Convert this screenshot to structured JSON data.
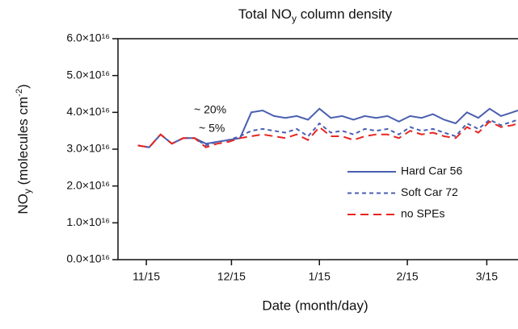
{
  "chart_data": {
    "type": "line",
    "title": [
      "Total NO",
      "y",
      " column density"
    ],
    "x_label": "Date (month/day)",
    "y_label": [
      "NO",
      "y",
      " (molecules cm",
      "-2",
      ")"
    ],
    "x": [
      "11/12",
      "11/16",
      "11/20",
      "11/24",
      "11/28",
      "12/2",
      "12/6",
      "12/10",
      "12/14",
      "12/18",
      "12/22",
      "12/26",
      "12/30",
      "1/3",
      "1/7",
      "1/11",
      "1/15",
      "1/19",
      "1/23",
      "1/27",
      "1/31",
      "2/4",
      "2/8",
      "2/12",
      "2/16",
      "2/20",
      "2/24",
      "2/28",
      "3/4",
      "3/8",
      "3/12",
      "3/16",
      "3/20",
      "3/24",
      "3/26"
    ],
    "xlim": [
      "11/5",
      "3/26"
    ],
    "xticks": [
      "11/15",
      "12/15",
      "1/15",
      "2/15",
      "3/15"
    ],
    "ylim": [
      0,
      6e+16
    ],
    "yticks": [
      {
        "value": 0,
        "label": "0.0×10¹⁶"
      },
      {
        "value": 1e+16,
        "label": "1.0×10¹⁶"
      },
      {
        "value": 2e+16,
        "label": "2.0×10¹⁶"
      },
      {
        "value": 3e+16,
        "label": "3.0×10¹⁶"
      },
      {
        "value": 4e+16,
        "label": "4.0×10¹⁶"
      },
      {
        "value": 5e+16,
        "label": "5.0×10¹⁶"
      },
      {
        "value": 6e+16,
        "label": "6.0×10¹⁶"
      }
    ],
    "series": [
      {
        "name": "Hard Car 56",
        "color": "#4a5fb0",
        "dash": "solid",
        "values": [
          3.1e+16,
          3.05e+16,
          3.4e+16,
          3.15e+16,
          3.3e+16,
          3.3e+16,
          3.15e+16,
          3.2e+16,
          3.25e+16,
          3.3e+16,
          4e+16,
          4.05e+16,
          3.9e+16,
          3.85e+16,
          3.9e+16,
          3.8e+16,
          4.1e+16,
          3.85e+16,
          3.9e+16,
          3.8e+16,
          3.9e+16,
          3.85e+16,
          3.9e+16,
          3.75e+16,
          3.9e+16,
          3.85e+16,
          3.95e+16,
          3.8e+16,
          3.7e+16,
          4e+16,
          3.85e+16,
          4.1e+16,
          3.9e+16,
          4e+16,
          4.05e+16
        ]
      },
      {
        "name": "Soft Car 72",
        "color": "#4a5fb0",
        "dash": "short",
        "values": [
          3.1e+16,
          3.05e+16,
          3.4e+16,
          3.15e+16,
          3.3e+16,
          3.3e+16,
          3.1e+16,
          3.2e+16,
          3.25e+16,
          3.35e+16,
          3.5e+16,
          3.55e+16,
          3.5e+16,
          3.45e+16,
          3.55e+16,
          3.35e+16,
          3.7e+16,
          3.45e+16,
          3.5e+16,
          3.4e+16,
          3.55e+16,
          3.5e+16,
          3.55e+16,
          3.4e+16,
          3.6e+16,
          3.5e+16,
          3.55e+16,
          3.45e+16,
          3.35e+16,
          3.7e+16,
          3.55e+16,
          3.8e+16,
          3.65e+16,
          3.75e+16,
          3.8e+16
        ]
      },
      {
        "name": "no SPEs",
        "color": "#e8251f",
        "dash": "long",
        "values": [
          3.1e+16,
          3.05e+16,
          3.4e+16,
          3.15e+16,
          3.3e+16,
          3.3e+16,
          3.05e+16,
          3.15e+16,
          3.2e+16,
          3.3e+16,
          3.35e+16,
          3.4e+16,
          3.35e+16,
          3.3e+16,
          3.4e+16,
          3.25e+16,
          3.6e+16,
          3.35e+16,
          3.35e+16,
          3.25e+16,
          3.35e+16,
          3.4e+16,
          3.4e+16,
          3.3e+16,
          3.5e+16,
          3.4e+16,
          3.45e+16,
          3.35e+16,
          3.3e+16,
          3.6e+16,
          3.45e+16,
          3.75e+16,
          3.6e+16,
          3.65e+16,
          3.7e+16
        ]
      }
    ],
    "annotations": [
      "~ 20%",
      "~ 5%"
    ]
  }
}
